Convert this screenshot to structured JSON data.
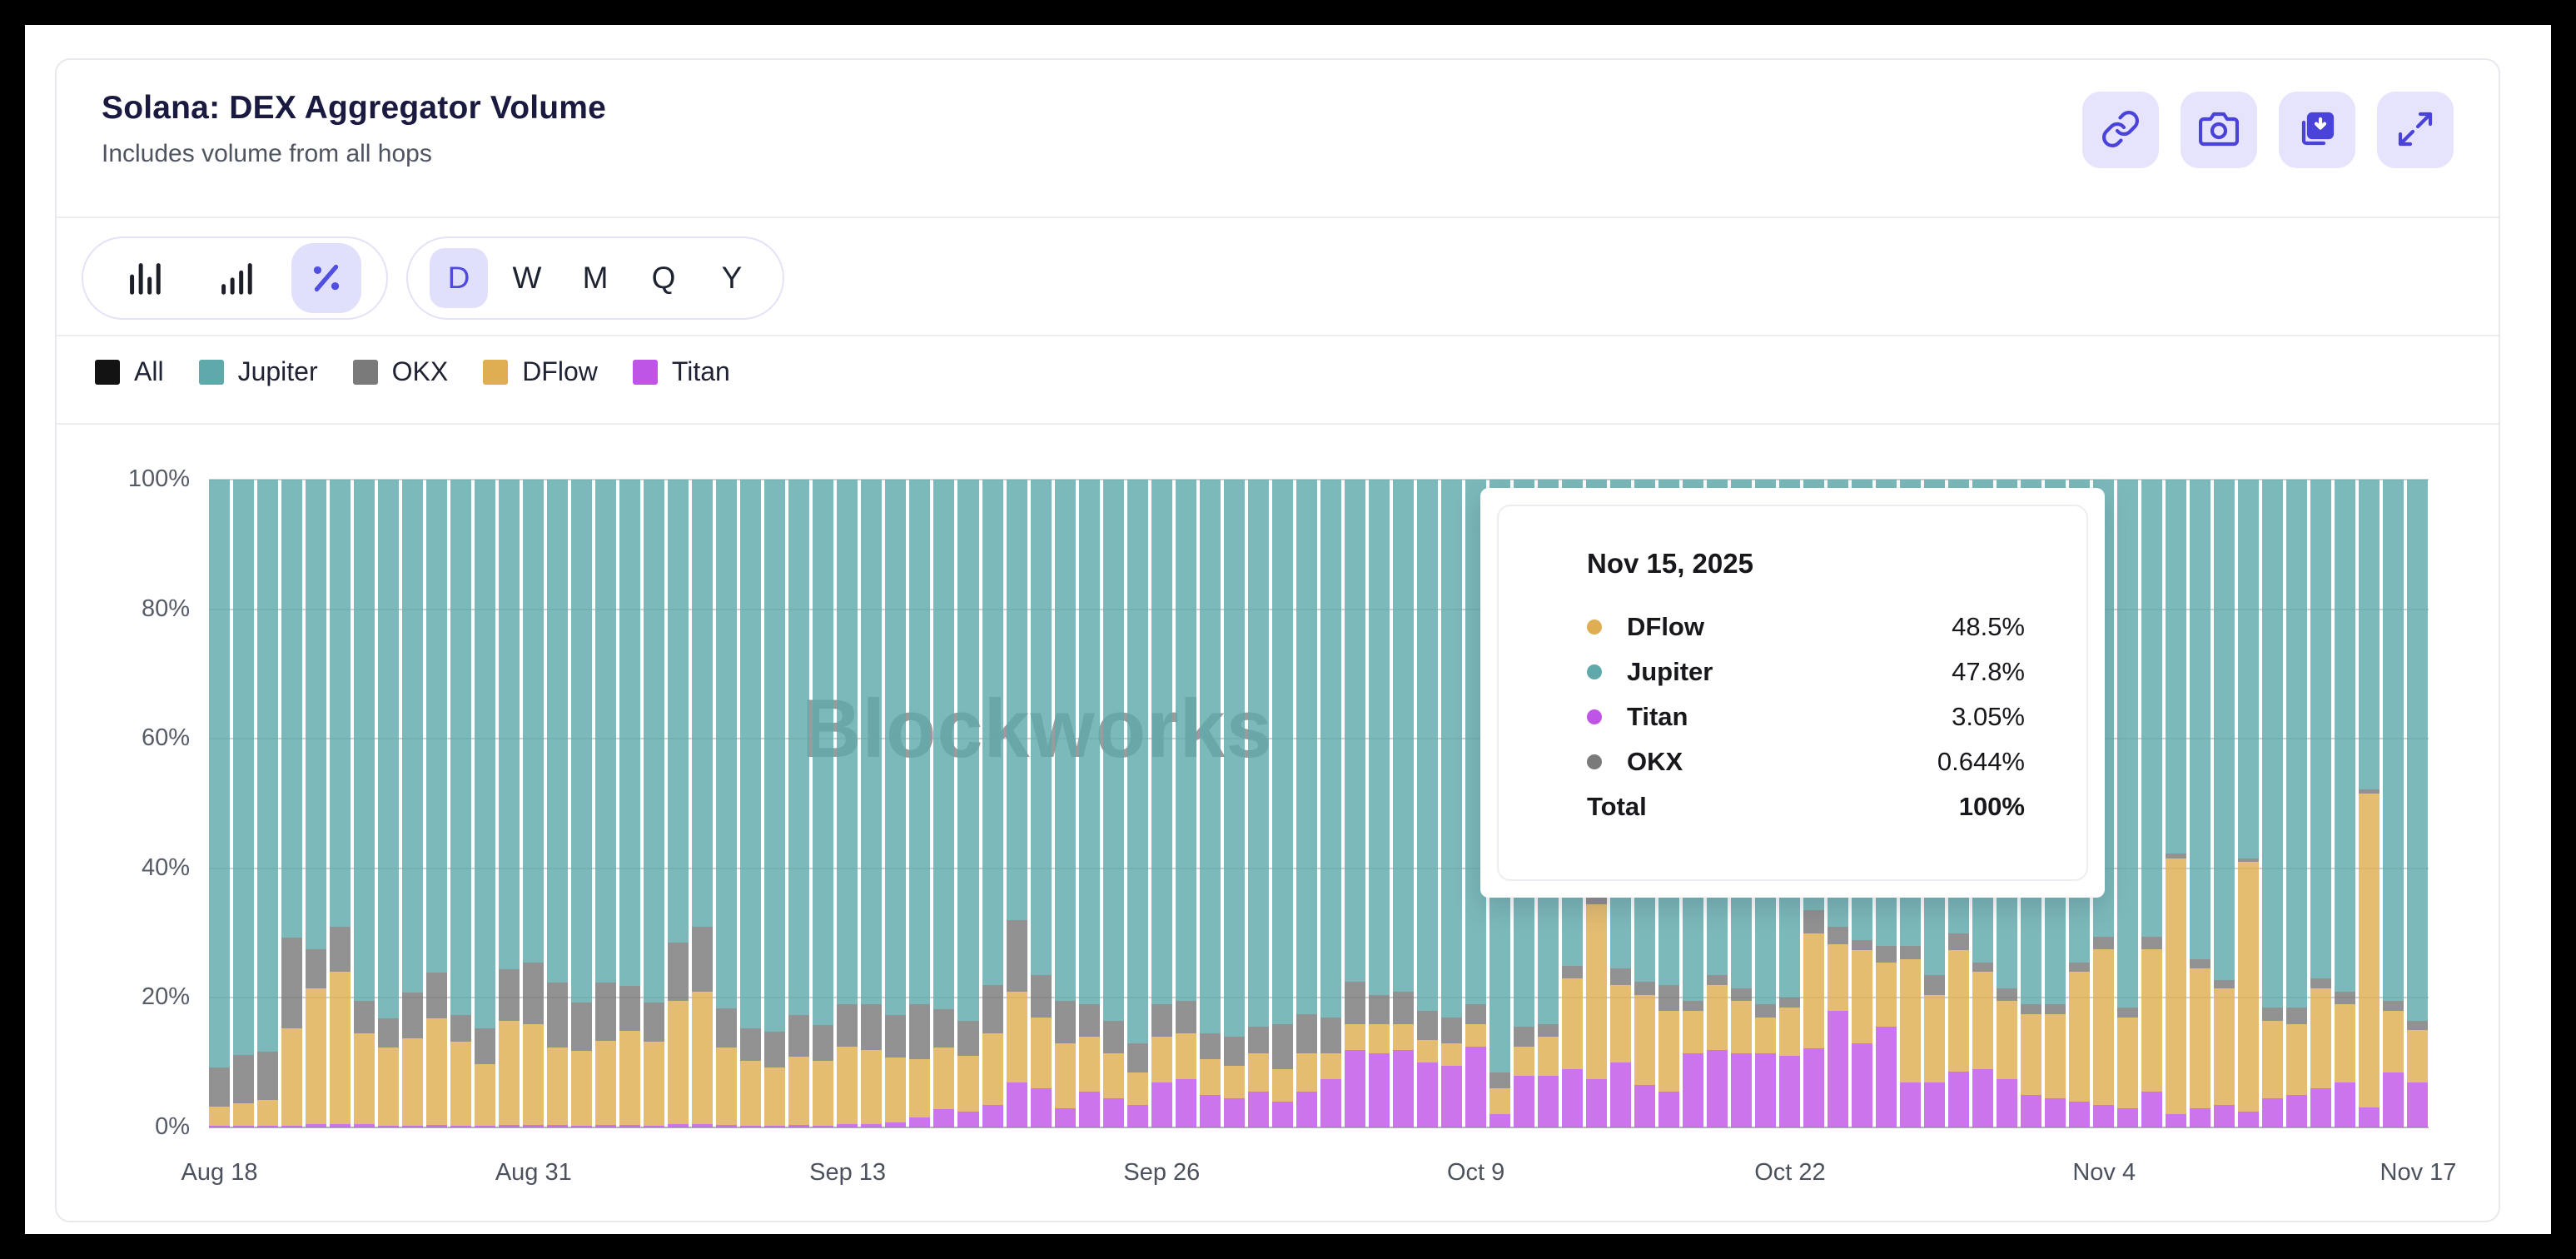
{
  "header": {
    "title": "Solana: DEX Aggregator Volume",
    "subtitle": "Includes volume from all hops",
    "actions": [
      "link-icon",
      "camera-icon",
      "download-icon",
      "expand-icon"
    ]
  },
  "toolbar": {
    "chart_types": [
      "bar-grouped",
      "bar-ascending",
      "percent"
    ],
    "active_chart_type": "percent",
    "ranges": [
      "D",
      "W",
      "M",
      "Q",
      "Y"
    ],
    "active_range": "D"
  },
  "legend": [
    {
      "label": "All",
      "color": "#131313"
    },
    {
      "label": "Jupiter",
      "color": "#5fa9ab"
    },
    {
      "label": "OKX",
      "color": "#7a7a7a"
    },
    {
      "label": "DFlow",
      "color": "#dfae52"
    },
    {
      "label": "Titan",
      "color": "#bf55e6"
    }
  ],
  "watermark": "Blockworks",
  "colors": {
    "accent": "#4f48e2",
    "accent_bg": "#e1e0fb",
    "title": "#1a1a40",
    "jupiter": "#5fa9ab",
    "okx": "#7a7a7a",
    "dflow": "#dfae52",
    "titan": "#bf55e6"
  },
  "tooltip": {
    "date": "Nov 15, 2025",
    "rows": [
      {
        "name": "DFlow",
        "value": "48.5%",
        "color": "#dfae52"
      },
      {
        "name": "Jupiter",
        "value": "47.8%",
        "color": "#5fa9ab"
      },
      {
        "name": "Titan",
        "value": "3.05%",
        "color": "#bf55e6"
      },
      {
        "name": "OKX",
        "value": "0.644%",
        "color": "#7a7a7a"
      }
    ],
    "total_label": "Total",
    "total_value": "100%"
  },
  "chart_data": {
    "type": "bar",
    "stacked": true,
    "unit": "%",
    "num_bars": 92,
    "x_start": "Aug 18",
    "x_end": "Nov 17",
    "x_ticks": [
      {
        "label": "Aug 18",
        "index": 0
      },
      {
        "label": "Aug 31",
        "index": 13
      },
      {
        "label": "Sep 13",
        "index": 26
      },
      {
        "label": "Sep 26",
        "index": 39
      },
      {
        "label": "Oct 9",
        "index": 52
      },
      {
        "label": "Oct 22",
        "index": 65
      },
      {
        "label": "Nov 4",
        "index": 78
      },
      {
        "label": "Nov 17",
        "index": 91
      }
    ],
    "ylim": [
      0,
      100
    ],
    "y_ticks": [
      "0%",
      "20%",
      "40%",
      "60%",
      "80%",
      "100%"
    ],
    "grid": true,
    "legend_position": "top-left",
    "stack_order_bottom_to_top": [
      "Titan",
      "DFlow",
      "OKX",
      "Jupiter"
    ],
    "series": [
      {
        "name": "Titan",
        "color": "#bf55e6",
        "values": [
          0.2,
          0.2,
          0.2,
          0.3,
          0.5,
          0.5,
          0.5,
          0.3,
          0.3,
          0.4,
          0.3,
          0.3,
          0.4,
          0.4,
          0.4,
          0.3,
          0.4,
          0.4,
          0.3,
          0.5,
          0.5,
          0.4,
          0.3,
          0.3,
          0.4,
          0.3,
          0.5,
          0.5,
          0.8,
          1.5,
          2.8,
          2.5,
          3.5,
          7.0,
          6.0,
          3.0,
          5.5,
          4.5,
          3.5,
          7.0,
          7.5,
          5.0,
          4.5,
          5.5,
          4.0,
          5.5,
          7.5,
          12.0,
          11.5,
          12.0,
          10.0,
          9.5,
          12.5,
          2.0,
          8.0,
          8.0,
          9.0,
          7.5,
          10.0,
          6.5,
          5.5,
          11.5,
          12.0,
          11.5,
          11.5,
          11.0,
          12.2,
          18.0,
          13.0,
          15.5,
          7.0,
          7.0,
          8.6,
          9.0,
          7.5,
          5.0,
          4.5,
          4.0,
          3.5,
          3.0,
          5.5,
          2.0,
          3.0,
          3.5,
          2.5,
          4.5,
          5.0,
          6.0,
          7.0,
          3.05,
          8.5,
          7.0
        ]
      },
      {
        "name": "DFlow",
        "color": "#dfae52",
        "values": [
          3.0,
          3.5,
          4.0,
          15.0,
          21.0,
          23.5,
          14.0,
          12.0,
          13.5,
          16.5,
          13.0,
          9.5,
          16.0,
          15.5,
          12.0,
          11.5,
          13.0,
          14.5,
          13.0,
          19.0,
          20.5,
          12.0,
          10.0,
          9.0,
          10.5,
          10.0,
          12.0,
          11.5,
          10.0,
          9.0,
          9.5,
          8.5,
          11.0,
          14.0,
          11.0,
          10.0,
          8.5,
          7.0,
          5.0,
          7.0,
          7.0,
          5.5,
          5.0,
          6.0,
          5.0,
          6.0,
          4.0,
          4.0,
          4.5,
          4.0,
          3.5,
          3.5,
          3.5,
          4.0,
          4.5,
          6.0,
          14.0,
          27.0,
          12.0,
          14.0,
          12.5,
          6.5,
          10.0,
          8.0,
          5.5,
          7.5,
          17.8,
          10.3,
          14.4,
          10.0,
          19.0,
          13.5,
          18.8,
          15.0,
          12.0,
          12.5,
          13.0,
          20.0,
          24.0,
          14.0,
          22.0,
          39.5,
          21.5,
          18.0,
          38.5,
          12.0,
          11.0,
          15.5,
          12.0,
          48.5,
          9.5,
          8.0
        ]
      },
      {
        "name": "OKX",
        "color": "#7a7a7a",
        "values": [
          6.0,
          7.5,
          7.5,
          14.0,
          6.0,
          7.0,
          5.0,
          4.5,
          7.0,
          7.0,
          4.0,
          5.5,
          8.0,
          9.5,
          10.0,
          7.5,
          9.0,
          7.0,
          6.0,
          9.0,
          10.0,
          6.0,
          5.0,
          5.5,
          6.5,
          5.5,
          6.5,
          7.0,
          6.5,
          8.5,
          6.0,
          5.5,
          7.5,
          11.0,
          6.5,
          6.5,
          5.0,
          5.0,
          4.5,
          5.0,
          5.0,
          4.0,
          4.5,
          4.0,
          7.0,
          6.0,
          5.5,
          6.5,
          4.5,
          5.0,
          4.5,
          4.0,
          3.0,
          2.5,
          3.0,
          2.0,
          2.0,
          1.0,
          2.5,
          2.0,
          4.0,
          1.5,
          1.5,
          2.0,
          2.0,
          1.5,
          3.5,
          2.7,
          1.5,
          2.5,
          2.0,
          3.0,
          2.6,
          1.5,
          2.0,
          1.5,
          1.5,
          1.5,
          2.0,
          1.5,
          2.0,
          0.8,
          1.5,
          1.2,
          0.5,
          2.0,
          2.5,
          1.5,
          2.0,
          0.644,
          1.5,
          1.5
        ]
      },
      {
        "name": "Jupiter",
        "color": "#5fa9ab",
        "values": [
          90.8,
          88.8,
          88.3,
          70.7,
          72.5,
          69.0,
          80.5,
          83.2,
          79.2,
          76.1,
          82.7,
          84.7,
          75.6,
          74.6,
          77.6,
          80.7,
          77.6,
          78.1,
          80.7,
          71.5,
          69.0,
          81.6,
          84.7,
          85.2,
          82.6,
          84.2,
          81.0,
          81.0,
          82.7,
          81.0,
          81.7,
          83.5,
          78.0,
          68.0,
          76.5,
          80.5,
          81.0,
          83.5,
          87.0,
          81.0,
          80.5,
          85.5,
          86.0,
          84.5,
          84.0,
          82.5,
          83.0,
          77.5,
          79.5,
          79.0,
          82.0,
          83.0,
          81.0,
          91.5,
          84.5,
          84.0,
          75.0,
          64.5,
          75.5,
          77.5,
          78.0,
          80.5,
          76.5,
          78.5,
          81.0,
          80.0,
          66.5,
          69.0,
          71.1,
          72.0,
          72.0,
          76.5,
          70.0,
          74.5,
          78.5,
          81.0,
          81.0,
          74.5,
          70.5,
          81.5,
          70.5,
          57.7,
          74.0,
          77.3,
          58.5,
          81.5,
          81.5,
          77.0,
          79.0,
          47.8,
          80.5,
          83.5
        ]
      }
    ]
  }
}
